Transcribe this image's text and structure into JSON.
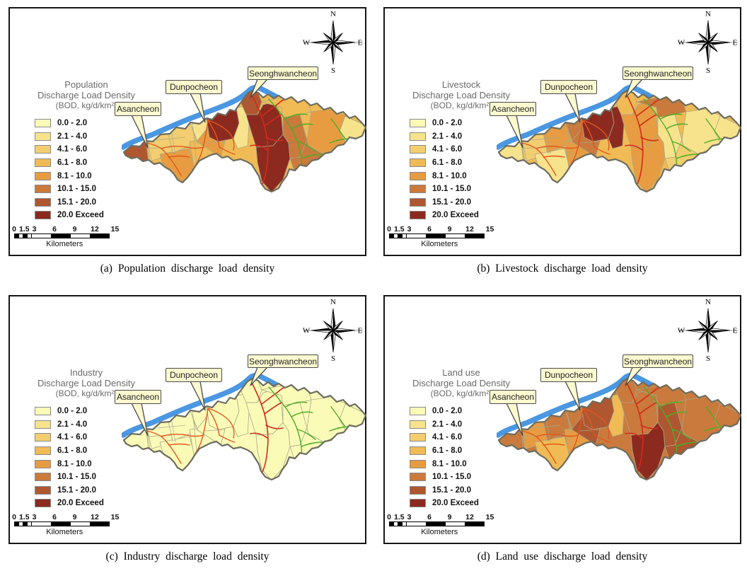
{
  "figure": {
    "panels": [
      {
        "id": "a",
        "caption": "(a) Population discharge load density",
        "legend_title": [
          "Population",
          "Discharge Load Density",
          "(BOD, kg/d/km²)"
        ],
        "base_class": 4,
        "region_classes": [
          7,
          3,
          5,
          3,
          4,
          2,
          5,
          8,
          2,
          7,
          8,
          8,
          6,
          4,
          5,
          6,
          2
        ]
      },
      {
        "id": "b",
        "caption": "(b) Livestock discharge load density",
        "legend_title": [
          "Livestock",
          "Discharge Load Density",
          "(BOD, kg/d/km²)"
        ],
        "base_class": 4,
        "region_classes": [
          2,
          3,
          2,
          5,
          5,
          6,
          6,
          8,
          8,
          4,
          5,
          5,
          2,
          6,
          2,
          3,
          2
        ]
      },
      {
        "id": "c",
        "caption": "(c) Industry discharge load density",
        "legend_title": [
          "Industry",
          "Discharge Load Density",
          "(BOD, kg/d/km²)"
        ],
        "base_class": 1,
        "region_classes": [
          1,
          1,
          1,
          1,
          1,
          1,
          1,
          1,
          1,
          1,
          1,
          1,
          1,
          1,
          1,
          1,
          1
        ]
      },
      {
        "id": "d",
        "caption": "(d) Land use discharge load density",
        "legend_title": [
          "Land use",
          "Discharge Load Density",
          "(BOD, kg/d/km²)"
        ],
        "base_class": 6,
        "region_classes": [
          6,
          5,
          4,
          6,
          5,
          6,
          7,
          7,
          4,
          6,
          6,
          8,
          7,
          6,
          6,
          7,
          6
        ]
      }
    ],
    "legend": {
      "labels": [
        "0.0 - 2.0",
        "2.1 - 4.0",
        "4.1 - 6.0",
        "6.1 - 8.0",
        "8.1 - 10.0",
        "10.1 - 15.0",
        "15.1 - 20.0",
        "20.0 Exceed"
      ],
      "colors": [
        "#FBFBB8",
        "#F8E38D",
        "#F3CE70",
        "#F0BB55",
        "#E79C42",
        "#C97A3C",
        "#AE5730",
        "#8C2A20"
      ]
    },
    "map_labels": [
      "Asancheon",
      "Dunpocheon",
      "Seonghwancheon"
    ],
    "compass": {
      "directions": [
        "N",
        "E",
        "S",
        "W"
      ]
    },
    "scalebar": {
      "tick_labels": [
        "0",
        "1.5",
        "3",
        "6",
        "9",
        "12",
        "15"
      ],
      "unit": "Kilometers"
    },
    "colors": {
      "river": "#4A97E2",
      "stream_orange": "#E2561C",
      "stream_red": "#D22A1A",
      "stream_green": "#4EAD26",
      "outline": "#6D6D5F",
      "boundary": "#A8A88A",
      "callout_bg": "#FDFAD0",
      "callout_border": "#4A4A4A"
    }
  }
}
